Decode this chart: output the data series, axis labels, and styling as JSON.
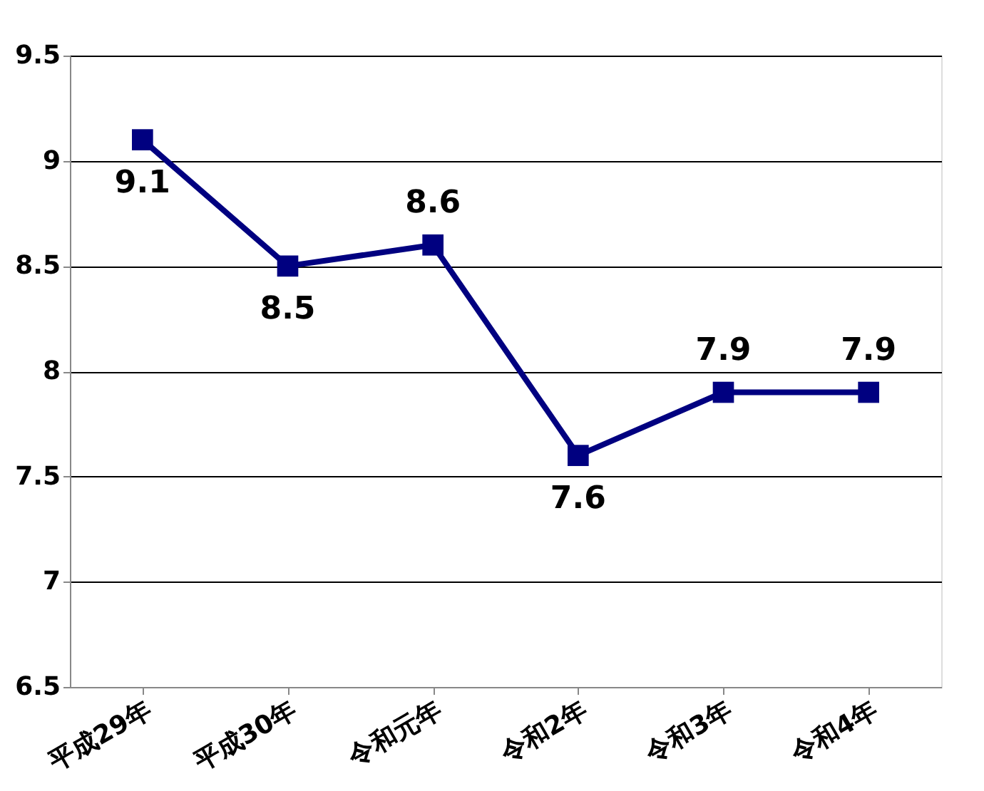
{
  "chart_data": {
    "type": "line",
    "categories": [
      "平成29年",
      "平成30年",
      "令和元年",
      "令和2年",
      "令和3年",
      "令和4年"
    ],
    "series": [
      {
        "color": "#000080",
        "values": [
          9.1,
          8.5,
          8.6,
          7.6,
          7.9,
          7.9
        ]
      }
    ],
    "ylim": [
      6.5,
      9.5
    ],
    "yticks": [
      6.5,
      7,
      7.5,
      8,
      8.5,
      9,
      9.5
    ],
    "grid": "y",
    "marker": "square",
    "line_style": "solid",
    "data_labels": true
  }
}
